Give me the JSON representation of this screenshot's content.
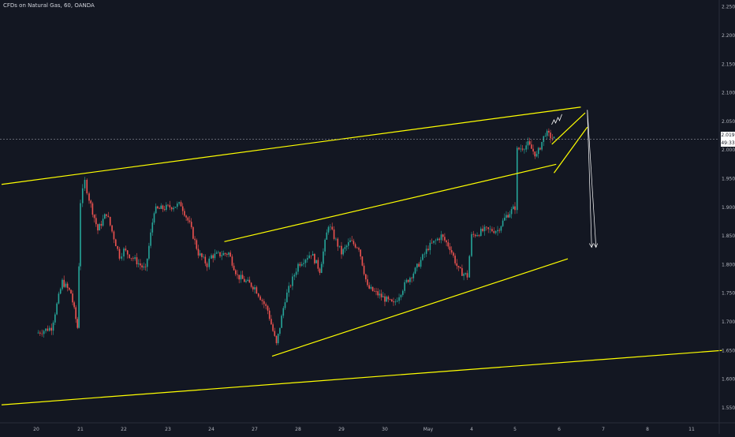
{
  "header": {
    "title": "CFDs on Natural Gas, 60, OANDA"
  },
  "price_badge": "2.019",
  "timer_badge": "49:33",
  "colors": {
    "background": "#131722",
    "up": "#26a69a",
    "down": "#ef5350",
    "trendline": "#ffff00",
    "grid": "#1e222d",
    "axis_text": "#b2b5be",
    "projection": "#ffffff"
  },
  "chart_data": {
    "type": "candlestick",
    "title": "CFDs on Natural Gas, 60, OANDA",
    "xlabel": "",
    "ylabel": "",
    "ylim": [
      1.525,
      2.262
    ],
    "y_ticks": [
      "2.250",
      "2.200",
      "2.150",
      "2.100",
      "2.050",
      "2.000",
      "1.950",
      "1.900",
      "1.850",
      "1.800",
      "1.750",
      "1.700",
      "1.650",
      "1.600",
      "1.550"
    ],
    "x_ticks": [
      "20",
      "21",
      "22",
      "23",
      "24",
      "27",
      "28",
      "29",
      "30",
      "May",
      "4",
      "5",
      "6",
      "7",
      "8",
      "11"
    ],
    "current_price": 2.019,
    "grid": false,
    "price_path": [
      [
        "20",
        1.68
      ],
      [
        "20.35",
        1.69
      ],
      [
        "20.6",
        1.77
      ],
      [
        "20.8",
        1.75
      ],
      [
        "20.95",
        1.69
      ],
      [
        "21",
        1.91
      ],
      [
        "21.1",
        1.945
      ],
      [
        "21.2",
        1.915
      ],
      [
        "21.4",
        1.86
      ],
      [
        "21.6",
        1.89
      ],
      [
        "21.9",
        1.815
      ],
      [
        "22",
        1.825
      ],
      [
        "22.3",
        1.805
      ],
      [
        "22.5",
        1.79
      ],
      [
        "22.7",
        1.895
      ],
      [
        "23",
        1.9
      ],
      [
        "23.3",
        1.905
      ],
      [
        "23.5",
        1.87
      ],
      [
        "23.7",
        1.82
      ],
      [
        "23.9",
        1.8
      ],
      [
        "24",
        1.815
      ],
      [
        "24.4",
        1.82
      ],
      [
        "24.6",
        1.78
      ],
      [
        "27",
        1.76
      ],
      [
        "27.3",
        1.72
      ],
      [
        "27.5",
        1.66
      ],
      [
        "27.7",
        1.74
      ],
      [
        "28",
        1.8
      ],
      [
        "28.3",
        1.82
      ],
      [
        "28.5",
        1.79
      ],
      [
        "28.7",
        1.87
      ],
      [
        "29",
        1.82
      ],
      [
        "29.2",
        1.84
      ],
      [
        "29.4",
        1.83
      ],
      [
        "29.6",
        1.76
      ],
      [
        "29.8",
        1.75
      ],
      [
        "30",
        1.74
      ],
      [
        "30.2",
        1.73
      ],
      [
        "30.5",
        1.77
      ],
      [
        "30.7",
        1.79
      ],
      [
        "May",
        1.83
      ],
      [
        "May.3",
        1.85
      ],
      [
        "May.5",
        1.83
      ],
      [
        "May.7",
        1.79
      ],
      [
        "3.9",
        1.78
      ],
      [
        "4",
        1.85
      ],
      [
        "4.3",
        1.86
      ],
      [
        "4.6",
        1.86
      ],
      [
        "4.8",
        1.885
      ],
      [
        "5",
        1.9
      ],
      [
        "5.05",
        2.0
      ],
      [
        "5.3",
        2.01
      ],
      [
        "5.5",
        1.99
      ],
      [
        "5.7",
        2.03
      ],
      [
        "5.9",
        2.019
      ]
    ],
    "annotations": [
      {
        "type": "trendline",
        "from": [
          "19.2",
          1.94
        ],
        "to": [
          "6.5",
          2.075
        ]
      },
      {
        "type": "trendline",
        "from": [
          "24.3",
          1.84
        ],
        "to": [
          "5.95",
          1.975
        ]
      },
      {
        "type": "trendline",
        "from": [
          "27.4",
          1.64
        ],
        "to": [
          "6.2",
          1.81
        ]
      },
      {
        "type": "trendline",
        "from": [
          "19.2",
          1.555
        ],
        "to": [
          "11.7",
          1.65
        ]
      },
      {
        "type": "trendline",
        "from": [
          "5.85",
          2.01
        ],
        "to": [
          "6.6",
          2.065
        ]
      },
      {
        "type": "trendline",
        "from": [
          "5.9",
          1.96
        ],
        "to": [
          "6.65",
          2.04
        ]
      },
      {
        "type": "projection",
        "from": [
          "6.65",
          2.07
        ],
        "to": [
          "6.75",
          1.83
        ]
      },
      {
        "type": "projection",
        "from": [
          "6.65",
          2.07
        ],
        "to": [
          "6.85",
          1.83
        ]
      }
    ]
  }
}
